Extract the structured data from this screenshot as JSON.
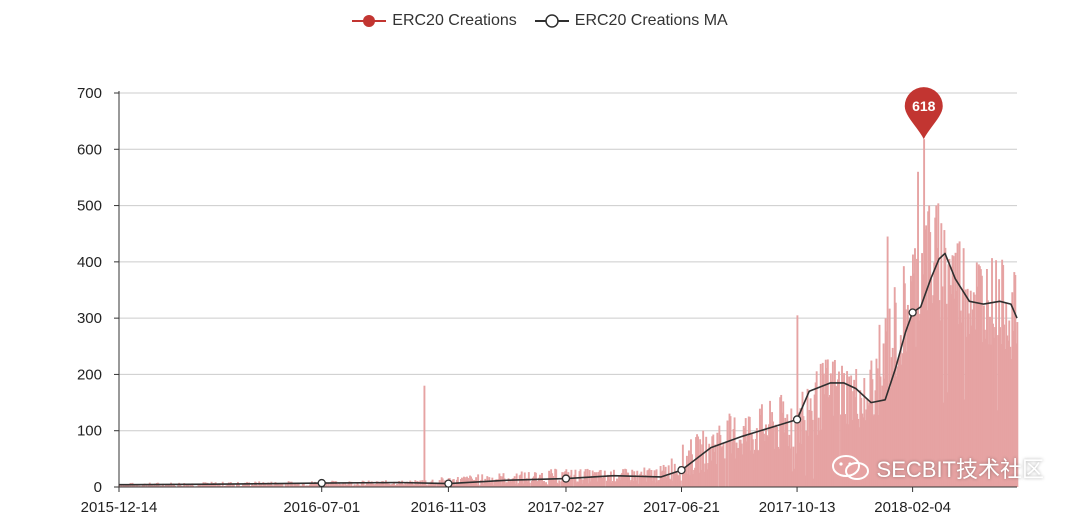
{
  "legend": {
    "series_1": "ERC20 Creations",
    "series_2": "ERC20 Creations MA"
  },
  "watermark": {
    "text": "SECBIT技术社区"
  },
  "colors": {
    "bars": "#e6a3a3",
    "bars_dark": "#c23531",
    "ma_line": "#2f2f2f",
    "grid": "#cccccc",
    "pin": "#c23531"
  },
  "chart_data": {
    "type": "area",
    "title": "",
    "xlabel": "",
    "ylabel": "",
    "ylim": [
      0,
      700
    ],
    "y_ticks": [
      "0",
      "100",
      "200",
      "300",
      "400",
      "500",
      "600",
      "700"
    ],
    "x_ticks": [
      "2015-12-14",
      "2016-07-01",
      "2016-11-03",
      "2017-02-27",
      "2017-06-21",
      "2017-10-13",
      "2018-02-04"
    ],
    "max_marker": {
      "date": "2018-02-15",
      "value": 618,
      "label": "618"
    },
    "series": [
      {
        "name": "ERC20 Creations",
        "note": "daily values, approximate envelope (mid, spread) read from the chart",
        "x": [
          "2015-12-14",
          "2016-03-01",
          "2016-07-01",
          "2016-10-01",
          "2016-10-10",
          "2016-11-03",
          "2017-01-01",
          "2017-02-27",
          "2017-04-15",
          "2017-06-01",
          "2017-06-21",
          "2017-08-01",
          "2017-09-15",
          "2017-10-13",
          "2017-11-15",
          "2017-12-20",
          "2018-01-10",
          "2018-02-01",
          "2018-02-15",
          "2018-03-01",
          "2018-04-01",
          "2018-05-01",
          "2018-05-18"
        ],
        "mid": [
          3,
          4,
          6,
          7,
          8,
          10,
          14,
          18,
          18,
          22,
          40,
          80,
          100,
          110,
          170,
          150,
          230,
          320,
          380,
          390,
          340,
          320,
          300
        ],
        "spread": [
          5,
          6,
          6,
          6,
          8,
          10,
          15,
          18,
          15,
          18,
          40,
          55,
          60,
          80,
          80,
          70,
          120,
          130,
          140,
          140,
          110,
          100,
          90
        ],
        "spikes": [
          {
            "date": "2016-10-10",
            "value": 180
          },
          {
            "date": "2017-10-13",
            "value": 305
          },
          {
            "date": "2018-01-10",
            "value": 445
          },
          {
            "date": "2018-02-09",
            "value": 560
          },
          {
            "date": "2018-02-15",
            "value": 618
          },
          {
            "date": "2018-02-20",
            "value": 500
          }
        ]
      },
      {
        "name": "ERC20 Creations MA",
        "x": [
          "2015-12-14",
          "2016-03-15",
          "2016-07-01",
          "2016-09-15",
          "2016-11-03",
          "2017-01-01",
          "2017-02-27",
          "2017-04-15",
          "2017-06-01",
          "2017-06-21",
          "2017-07-20",
          "2017-08-20",
          "2017-09-25",
          "2017-10-13",
          "2017-10-25",
          "2017-11-15",
          "2017-11-28",
          "2017-12-10",
          "2017-12-25",
          "2018-01-08",
          "2018-01-18",
          "2018-01-28",
          "2018-02-04",
          "2018-02-12",
          "2018-02-22",
          "2018-03-02",
          "2018-03-08",
          "2018-03-18",
          "2018-04-01",
          "2018-04-15",
          "2018-05-01",
          "2018-05-12",
          "2018-05-18"
        ],
        "y": [
          4,
          5,
          7,
          8,
          6,
          12,
          15,
          20,
          18,
          30,
          70,
          90,
          110,
          120,
          170,
          185,
          185,
          175,
          150,
          155,
          210,
          275,
          310,
          320,
          370,
          405,
          415,
          370,
          330,
          325,
          330,
          325,
          300
        ],
        "markers": [
          "2016-07-01",
          "2016-11-03",
          "2017-02-27",
          "2017-06-21",
          "2017-10-13",
          "2018-02-04"
        ]
      }
    ]
  }
}
